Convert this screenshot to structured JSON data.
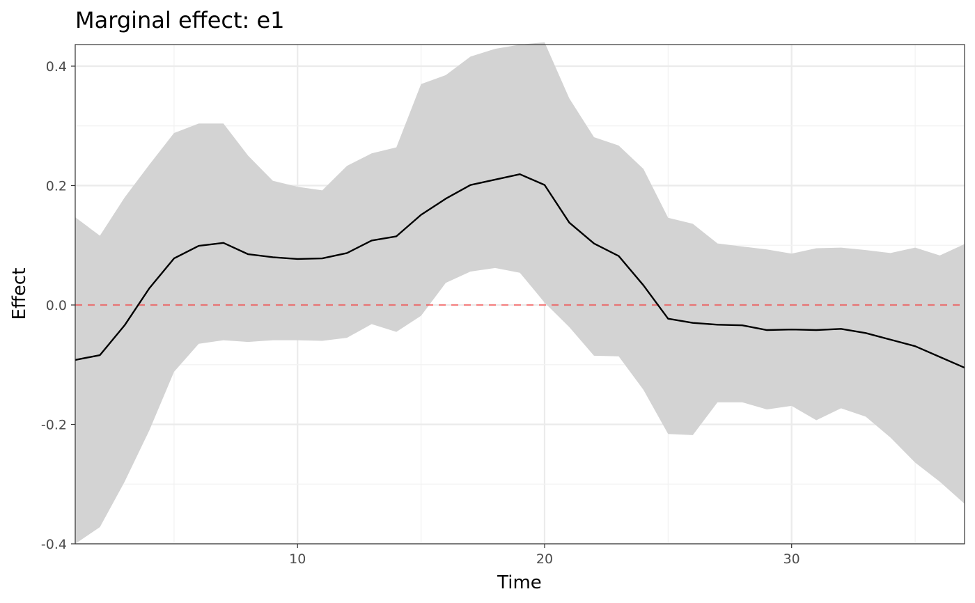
{
  "chart_data": {
    "type": "line",
    "title": "Marginal effect: e1",
    "xlabel": "Time",
    "ylabel": "Effect",
    "xlim": [
      1,
      37
    ],
    "ylim": [
      -0.4,
      0.4
    ],
    "x_ticks": [
      10,
      20,
      30
    ],
    "x_tick_labels": [
      "10",
      "20",
      "30"
    ],
    "y_ticks": [
      -0.4,
      -0.2,
      0.0,
      0.2,
      0.4
    ],
    "y_tick_labels": [
      "-0.4",
      "-0.2",
      "0.0",
      "0.2",
      "0.4"
    ],
    "grid": true,
    "reference_line": {
      "y": 0,
      "style": "dashed",
      "color": "#ff0000"
    },
    "colors": {
      "line": "#000000",
      "band": "#d3d3d3",
      "reference": "#ff0000"
    },
    "x": [
      1,
      2,
      3,
      4,
      5,
      6,
      7,
      8,
      9,
      10,
      11,
      12,
      13,
      14,
      15,
      16,
      17,
      18,
      19,
      20,
      21,
      22,
      23,
      24,
      25,
      26,
      27,
      28,
      29,
      30,
      31,
      32,
      33,
      34,
      35,
      36,
      37
    ],
    "series": [
      {
        "values": [
          -0.092,
          -0.084,
          -0.034,
          0.028,
          0.078,
          0.099,
          0.104,
          0.085,
          0.08,
          0.077,
          0.078,
          0.087,
          0.108,
          0.115,
          0.151,
          0.178,
          0.201,
          0.21,
          0.219,
          0.201,
          0.138,
          0.103,
          0.082,
          0.033,
          -0.023,
          -0.03,
          -0.033,
          -0.034,
          -0.042,
          -0.041,
          -0.042,
          -0.04,
          -0.047,
          -0.058,
          -0.069,
          -0.087,
          -0.105
        ]
      }
    ],
    "band": {
      "upper": [
        0.147,
        0.116,
        0.18,
        0.235,
        0.288,
        0.304,
        0.304,
        0.25,
        0.208,
        0.198,
        0.192,
        0.233,
        0.254,
        0.264,
        0.37,
        0.385,
        0.416,
        0.429,
        0.436,
        0.44,
        0.346,
        0.281,
        0.267,
        0.228,
        0.146,
        0.136,
        0.103,
        0.098,
        0.093,
        0.086,
        0.095,
        0.096,
        0.092,
        0.087,
        0.096,
        0.083,
        0.102
      ],
      "lower": [
        -0.4,
        -0.372,
        -0.296,
        -0.21,
        -0.112,
        -0.065,
        -0.059,
        -0.062,
        -0.059,
        -0.059,
        -0.06,
        -0.055,
        -0.032,
        -0.045,
        -0.018,
        0.037,
        0.056,
        0.062,
        0.054,
        0.004,
        -0.037,
        -0.085,
        -0.086,
        -0.142,
        -0.216,
        -0.218,
        -0.163,
        -0.163,
        -0.175,
        -0.169,
        -0.193,
        -0.173,
        -0.187,
        -0.222,
        -0.264,
        -0.296,
        -0.333
      ]
    }
  }
}
